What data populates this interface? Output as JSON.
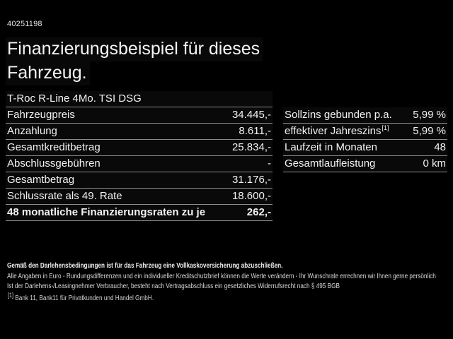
{
  "vehicle_id": "40251198",
  "title": {
    "line1": "Finanzierungsbeispiel für dieses",
    "line2": "Fahrzeug."
  },
  "finance_table": {
    "header": "T-Roc R-Line 4Mo. TSI DSG",
    "rows": [
      {
        "label": "Fahrzeugpreis",
        "value": "34.445,-"
      },
      {
        "label": "Anzahlung",
        "value": "8.611,-"
      },
      {
        "label": "Gesamtkreditbetrag",
        "value": "25.834,-"
      },
      {
        "label": "Abschlussgebühren",
        "value": "-"
      },
      {
        "label": "Gesamtbetrag",
        "value": "31.176,-"
      },
      {
        "label": "Schlussrate als 49. Rate",
        "value": "18.600,-"
      },
      {
        "label": "48 monatliche Finanzierungsraten zu je",
        "value": "262,-"
      }
    ]
  },
  "conditions_table": {
    "rows": [
      {
        "label": "Sollzins gebunden p.a.",
        "label_sup": "",
        "value": "5,99 %"
      },
      {
        "label": "effektiver Jahreszins",
        "label_sup": "[1]",
        "value": "5,99 %"
      },
      {
        "label": "Laufzeit in Monaten",
        "label_sup": "",
        "value": "48"
      },
      {
        "label": "Gesamtlaufleistung",
        "label_sup": "",
        "value": "0 km"
      }
    ]
  },
  "footer": {
    "insurance_note": "Gemäß den Darlehensbedingungen ist für das Fahrzeug eine Vollkaskoversicherung abzuschließen.",
    "disclaimer_line1": "Alle Angaben in Euro - Rundungsdifferenzen und ein individueller Kreditschutzbrief können die Werte verändern - Ihr Wunschrate errechnen wir Ihnen gerne persönlich",
    "disclaimer_line2": "Ist der Darlehens-/Leasingnehmer Verbraucher, besteht nach Vertragsabschluss ein gesetzliches Widerrufsrecht nach § 495 BGB",
    "footnote_marker": "[1]",
    "footnote_text": " Bank 11, Bank11 für Privatkunden und Handel GmbH."
  },
  "colors": {
    "background": "#000000",
    "text": "#f2f2f2",
    "divider": "#8c8c8c",
    "footer_text": "#dadada"
  }
}
